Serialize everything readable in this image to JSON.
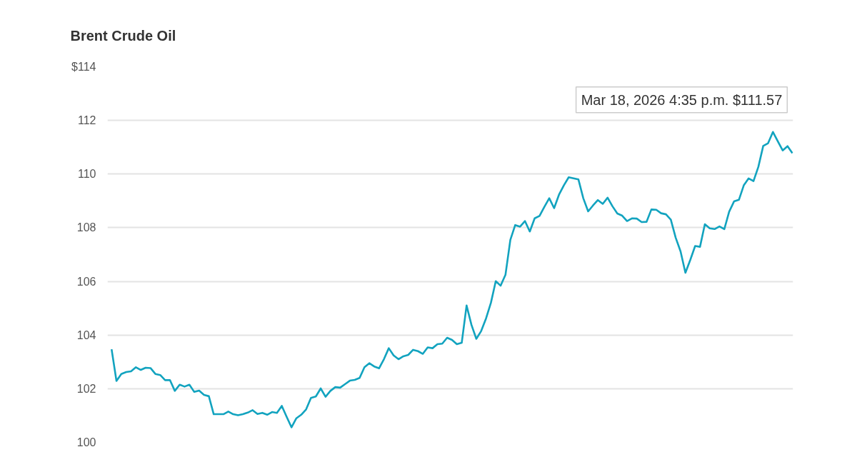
{
  "chart_data": {
    "type": "line",
    "title": "Brent Crude Oil",
    "categories": [
      null,
      null,
      null,
      null,
      null,
      null,
      null,
      null,
      null,
      null,
      null,
      null,
      null,
      null,
      null,
      null,
      null,
      null,
      null,
      null,
      null,
      null,
      null,
      null,
      null,
      null,
      null,
      null,
      null,
      null,
      null,
      null,
      null,
      null,
      null,
      null,
      null,
      null,
      null,
      null,
      null,
      null,
      null,
      null,
      null,
      null,
      null,
      null,
      null,
      null,
      null,
      null,
      null,
      null,
      null,
      null,
      null,
      null,
      null,
      null,
      null,
      null,
      null,
      null,
      null,
      null,
      null,
      null,
      null,
      null,
      null,
      null,
      null,
      null,
      null,
      null,
      null,
      null,
      null,
      null,
      null,
      null,
      null,
      null,
      null,
      null,
      null,
      null,
      null,
      null,
      null,
      null,
      null,
      null,
      null,
      null,
      null,
      null,
      null,
      null,
      null,
      null,
      null,
      null,
      null,
      null,
      null,
      null,
      null,
      null,
      null,
      null,
      null,
      null,
      null,
      null,
      null,
      null,
      null,
      null,
      null,
      null,
      null,
      null,
      null,
      null,
      null,
      null,
      null,
      null,
      null,
      null,
      null,
      null,
      null,
      null,
      null,
      null,
      null,
      null,
      null
    ],
    "series": [
      {
        "color": "#12a3bf",
        "values": [
          103.47,
          102.29,
          102.55,
          102.62,
          102.65,
          102.8,
          102.7,
          102.78,
          102.77,
          102.55,
          102.51,
          102.32,
          102.32,
          101.92,
          102.15,
          102.08,
          102.15,
          101.88,
          101.93,
          101.77,
          101.72,
          101.05,
          101.05,
          101.05,
          101.15,
          101.05,
          101.01,
          101.05,
          101.11,
          101.2,
          101.06,
          101.1,
          101.03,
          101.13,
          101.1,
          101.36,
          100.95,
          100.56,
          100.9,
          101.03,
          101.23,
          101.66,
          101.71,
          102.01,
          101.7,
          101.92,
          102.06,
          102.04,
          102.17,
          102.3,
          102.33,
          102.4,
          102.8,
          102.95,
          102.83,
          102.76,
          103.1,
          103.51,
          103.24,
          103.1,
          103.21,
          103.26,
          103.45,
          103.4,
          103.3,
          103.54,
          103.51,
          103.66,
          103.68,
          103.9,
          103.82,
          103.66,
          103.71,
          105.1,
          104.38,
          103.86,
          104.15,
          104.62,
          105.2,
          106.01,
          105.84,
          106.25,
          107.55,
          108.1,
          108.04,
          108.25,
          107.86,
          108.35,
          108.44,
          108.78,
          109.1,
          108.73,
          109.23,
          109.58,
          109.88,
          109.84,
          109.8,
          109.1,
          108.61,
          108.83,
          109.03,
          108.89,
          109.12,
          108.8,
          108.53,
          108.45,
          108.25,
          108.35,
          108.34,
          108.21,
          108.22,
          108.68,
          108.67,
          108.54,
          108.5,
          108.3,
          107.63,
          107.12,
          106.32,
          106.8,
          107.32,
          107.29,
          108.13,
          107.98,
          107.95,
          108.05,
          107.95,
          108.6,
          108.98,
          109.04,
          109.58,
          109.84,
          109.74,
          110.27,
          111.05,
          111.15,
          111.57,
          111.22,
          110.88,
          111.04,
          110.78
        ]
      }
    ],
    "ylim": [
      100,
      114
    ],
    "yticks": [
      {
        "value": 114,
        "label": "$114"
      },
      112,
      110,
      108,
      106,
      104,
      102,
      100
    ],
    "grid": "y",
    "tick_labels": "y",
    "annotations": [
      "Mar 18, 2026 4:35 p.m. $111.57"
    ]
  }
}
